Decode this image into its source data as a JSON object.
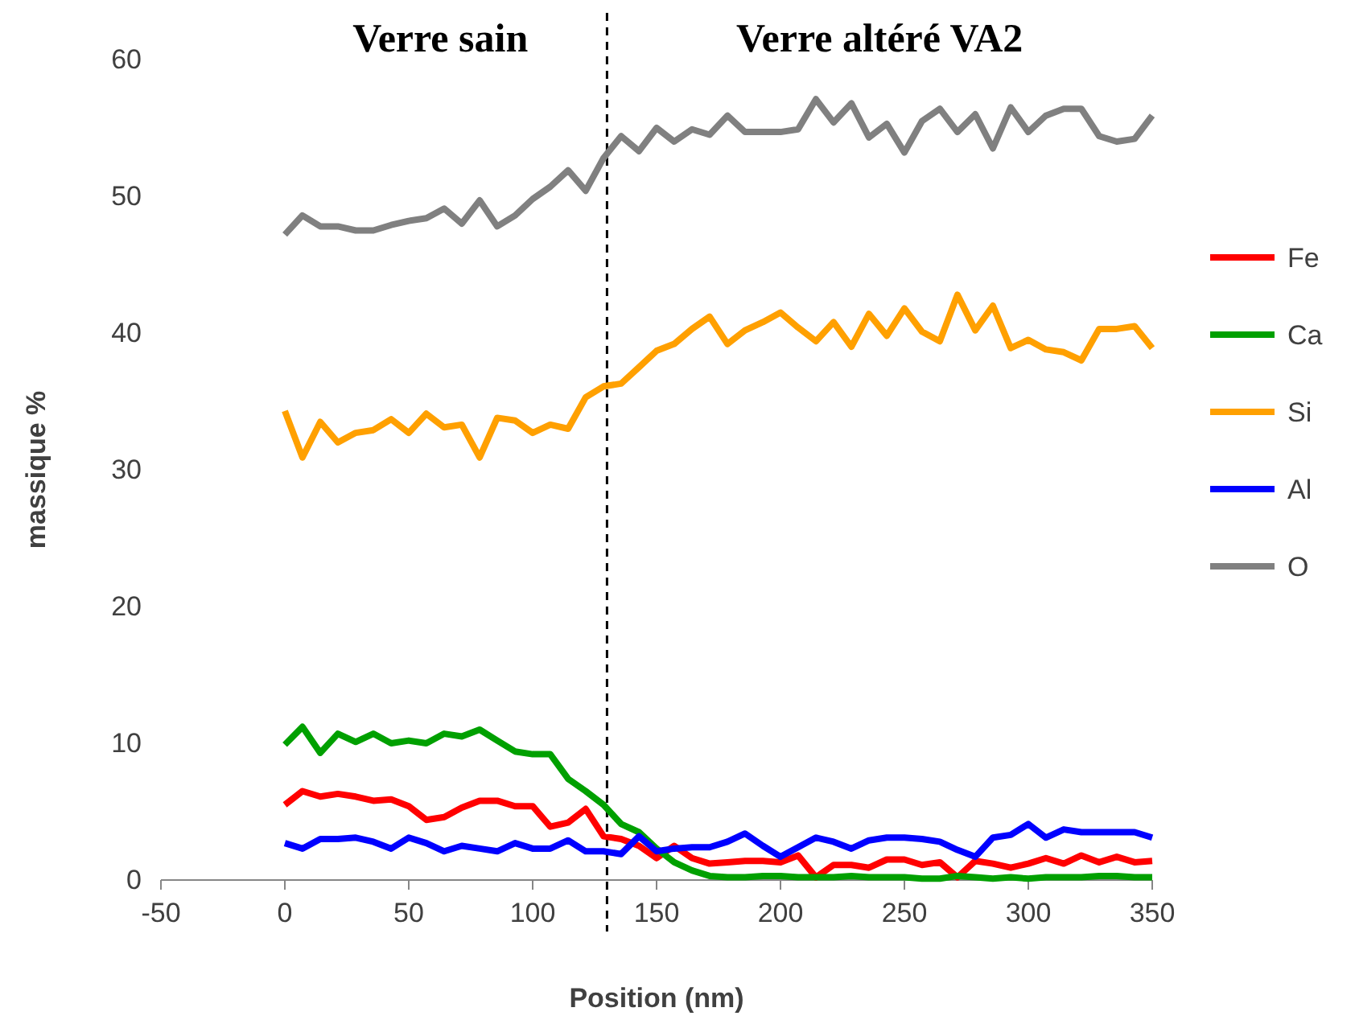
{
  "chart_data": {
    "type": "line",
    "annotations": [
      "Verre sain",
      "Verre altéré VA2"
    ],
    "xlabel": "Position (nm)",
    "ylabel": "massique %",
    "x": [
      0,
      7.1,
      14.3,
      21.4,
      28.6,
      35.7,
      42.9,
      50,
      57.1,
      64.3,
      71.4,
      78.6,
      85.7,
      92.9,
      100,
      107.1,
      114.3,
      121.4,
      128.6,
      135.7,
      142.9,
      150,
      157.1,
      164.3,
      171.4,
      178.6,
      185.7,
      192.9,
      200,
      207.1,
      214.3,
      221.4,
      228.6,
      235.7,
      242.9,
      250,
      257.1,
      264.3,
      271.4,
      278.6,
      285.7,
      292.9,
      300,
      307.1,
      314.3,
      321.4,
      328.6,
      335.7,
      342.9,
      350
    ],
    "series": [
      {
        "name": "Fe",
        "color": "#ff0000",
        "values": [
          5.5,
          6.5,
          6.1,
          6.3,
          6.1,
          5.8,
          5.9,
          5.4,
          4.4,
          4.6,
          5.3,
          5.8,
          5.8,
          5.4,
          5.4,
          3.9,
          4.2,
          5.2,
          3.2,
          3.0,
          2.5,
          1.6,
          2.5,
          1.6,
          1.2,
          1.3,
          1.4,
          1.4,
          1.3,
          1.8,
          0.2,
          1.1,
          1.1,
          0.9,
          1.5,
          1.5,
          1.1,
          1.3,
          0.2,
          1.4,
          1.2,
          0.9,
          1.2,
          1.6,
          1.2,
          1.8,
          1.3,
          1.7,
          1.3,
          1.4
        ]
      },
      {
        "name": "Ca",
        "color": "#00a000",
        "values": [
          9.9,
          11.2,
          9.3,
          10.7,
          10.1,
          10.7,
          10.0,
          10.2,
          10.0,
          10.7,
          10.5,
          11.0,
          10.2,
          9.4,
          9.2,
          9.2,
          7.4,
          6.5,
          5.5,
          4.1,
          3.5,
          2.3,
          1.3,
          0.7,
          0.3,
          0.2,
          0.2,
          0.3,
          0.3,
          0.2,
          0.2,
          0.2,
          0.3,
          0.2,
          0.2,
          0.2,
          0.1,
          0.1,
          0.3,
          0.2,
          0.1,
          0.2,
          0.1,
          0.2,
          0.2,
          0.2,
          0.3,
          0.3,
          0.2,
          0.2
        ]
      },
      {
        "name": "Si",
        "color": "#ffa000",
        "values": [
          34.3,
          30.9,
          33.5,
          32.0,
          32.7,
          32.9,
          33.7,
          32.7,
          34.1,
          33.1,
          33.3,
          30.9,
          33.8,
          33.6,
          32.7,
          33.3,
          33.0,
          35.3,
          36.1,
          36.3,
          37.5,
          38.7,
          39.2,
          40.3,
          41.2,
          39.2,
          40.2,
          40.8,
          41.5,
          40.4,
          39.4,
          40.8,
          39.0,
          41.4,
          39.8,
          41.8,
          40.1,
          39.4,
          42.8,
          40.2,
          42.0,
          38.9,
          39.5,
          38.8,
          38.6,
          38.0,
          40.3,
          40.3,
          40.5,
          38.9
        ]
      },
      {
        "name": "Al",
        "color": "#0000ff",
        "values": [
          2.7,
          2.3,
          3.0,
          3.0,
          3.1,
          2.8,
          2.3,
          3.1,
          2.7,
          2.1,
          2.5,
          2.3,
          2.1,
          2.7,
          2.3,
          2.3,
          2.9,
          2.1,
          2.1,
          1.9,
          3.2,
          2.1,
          2.3,
          2.4,
          2.4,
          2.8,
          3.4,
          2.5,
          1.7,
          2.4,
          3.1,
          2.8,
          2.3,
          2.9,
          3.1,
          3.1,
          3.0,
          2.8,
          2.2,
          1.7,
          3.1,
          3.3,
          4.1,
          3.1,
          3.7,
          3.5,
          3.5,
          3.5,
          3.5,
          3.1
        ]
      },
      {
        "name": "O",
        "color": "#808080",
        "values": [
          47.2,
          48.6,
          47.8,
          47.8,
          47.5,
          47.5,
          47.9,
          48.2,
          48.4,
          49.1,
          48.0,
          49.7,
          47.8,
          48.6,
          49.8,
          50.7,
          51.9,
          50.4,
          52.8,
          54.4,
          53.3,
          55.0,
          54.0,
          54.9,
          54.5,
          55.9,
          54.7,
          54.7,
          54.7,
          54.9,
          57.1,
          55.4,
          56.8,
          54.3,
          55.3,
          53.2,
          55.5,
          56.4,
          54.7,
          56.0,
          53.5,
          56.5,
          54.7,
          55.9,
          56.4,
          56.4,
          54.4,
          54.0,
          54.2,
          55.9
        ]
      }
    ],
    "xlim": [
      -50,
      350
    ],
    "xticks": [
      -50,
      0,
      50,
      100,
      150,
      200,
      250,
      300,
      350
    ],
    "ylim": [
      0,
      60
    ],
    "yticks": [
      0,
      10,
      20,
      30,
      40,
      50,
      60
    ],
    "ref_lines": [
      {
        "axis": "x",
        "value": 130,
        "color": "#000000",
        "line_style": "dashed"
      }
    ],
    "legend": "right",
    "grid": false,
    "marker": "none",
    "line_style": "solid"
  }
}
